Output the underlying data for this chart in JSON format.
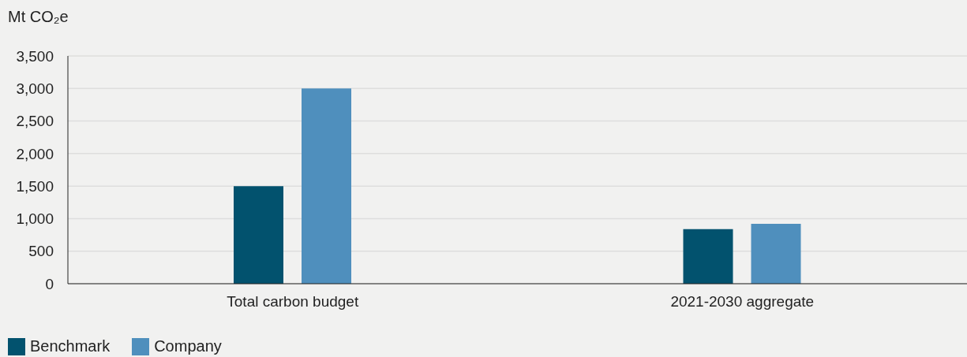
{
  "chart_data": {
    "type": "bar",
    "ylabel": "Mt CO₂e",
    "categories": [
      "Total carbon budget",
      "2021-2030 aggregate"
    ],
    "series": [
      {
        "name": "Benchmark",
        "color": "#02526e",
        "values": [
          1500,
          840
        ]
      },
      {
        "name": "Company",
        "color": "#4f8fbd",
        "values": [
          3000,
          920
        ]
      }
    ],
    "ylim": [
      0,
      3500
    ],
    "yticks": [
      {
        "value": 0,
        "label": "0"
      },
      {
        "value": 500,
        "label": "500"
      },
      {
        "value": 1000,
        "label": "1,000"
      },
      {
        "value": 1500,
        "label": "1,500"
      },
      {
        "value": 2000,
        "label": "2,000"
      },
      {
        "value": 2500,
        "label": "2,500"
      },
      {
        "value": 3000,
        "label": "3,000"
      },
      {
        "value": 3500,
        "label": "3,500"
      }
    ],
    "grid": "y",
    "legend": "bottom left"
  }
}
